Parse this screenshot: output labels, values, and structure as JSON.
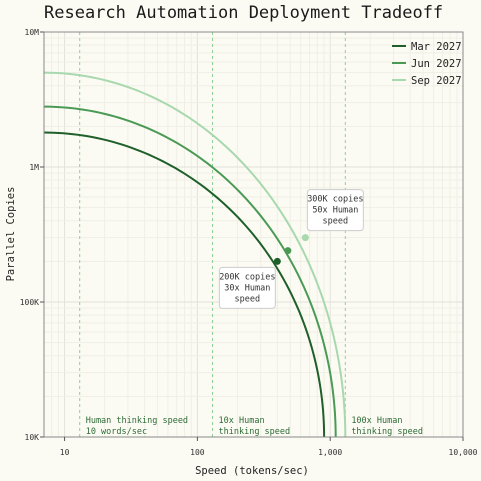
{
  "chart_data": {
    "type": "line",
    "title": "Research Automation Deployment Tradeoff",
    "xlabel": "Speed (tokens/sec)",
    "ylabel": "Parallel Copies",
    "x_scale": "log",
    "y_scale": "log",
    "xlim": [
      7,
      10000
    ],
    "ylim": [
      10000,
      10000000
    ],
    "x_ticks": [
      {
        "value": 10,
        "label": "10"
      },
      {
        "value": 100,
        "label": "100"
      },
      {
        "value": 1000,
        "label": "1,000"
      },
      {
        "value": 10000,
        "label": "10,000"
      }
    ],
    "y_ticks": [
      {
        "value": 10000,
        "label": "10K"
      },
      {
        "value": 100000,
        "label": "100K"
      },
      {
        "value": 1000000,
        "label": "1M"
      },
      {
        "value": 10000000,
        "label": "10M"
      }
    ],
    "grid": true,
    "legend_position": "top-right",
    "series": [
      {
        "name": "Mar 2027",
        "color": "#1f5f2a",
        "x_max": 900,
        "y_max": 1800000,
        "x_intercept": 900
      },
      {
        "name": "Jun 2027",
        "color": "#4a9a55",
        "x_max": 1100,
        "y_max": 2800000,
        "x_intercept": 1100
      },
      {
        "name": "Sep 2027",
        "color": "#a8d8ad",
        "x_max": 1300,
        "y_max": 5000000,
        "x_intercept": 1300
      }
    ],
    "reference_lines": [
      {
        "x": 13,
        "label_lines": [
          "Human thinking speed",
          "10 words/sec"
        ]
      },
      {
        "x": 130,
        "label_lines": [
          "10x Human",
          "thinking speed"
        ]
      },
      {
        "x": 1300,
        "label_lines": [
          "100x Human",
          "thinking speed"
        ]
      }
    ],
    "annotations": [
      {
        "x": 400,
        "y": 200000,
        "series": "Mar 2027",
        "label_lines": [
          "200K copies",
          "30x Human",
          "speed"
        ]
      },
      {
        "x": 650,
        "y": 300000,
        "series": "Sep 2027",
        "label_lines": [
          "300K copies",
          "50x Human",
          "speed"
        ]
      }
    ],
    "extra_points": [
      {
        "x": 480,
        "y": 240000,
        "series": "Jun 2027"
      }
    ]
  }
}
